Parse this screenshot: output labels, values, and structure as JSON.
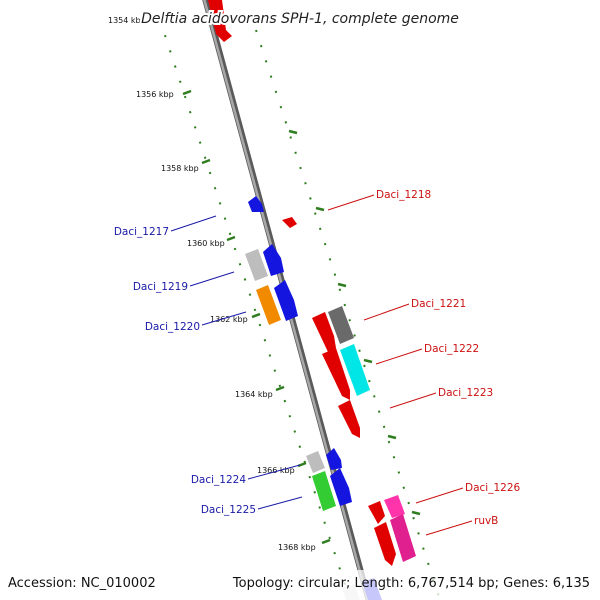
{
  "title": "Delftia acidovorans SPH-1, complete genome",
  "footer": {
    "accession": "Accession: NC_010002",
    "summary": "Topology: circular; Length: 6,767,514 bp; Genes: 6,135"
  },
  "ruler": {
    "unit_color": "#2e7d1f",
    "ticks": [
      "1354 kbp",
      "1356 kbp",
      "1358 kbp",
      "1360 kbp",
      "1362 kbp",
      "1364 kbp",
      "1366 kbp",
      "1368 kbp"
    ]
  },
  "colors": {
    "backbone": "#8a8a8a",
    "left_label": "#1a1aa8",
    "right_label": "#cc1111"
  },
  "gene_labels_left": [
    "Daci_1217",
    "Daci_1219",
    "Daci_1220",
    "Daci_1224",
    "Daci_1225"
  ],
  "gene_labels_right": [
    "Daci_1218",
    "Daci_1221",
    "Daci_1222",
    "Daci_1223",
    "Daci_1226",
    "ruvB"
  ]
}
